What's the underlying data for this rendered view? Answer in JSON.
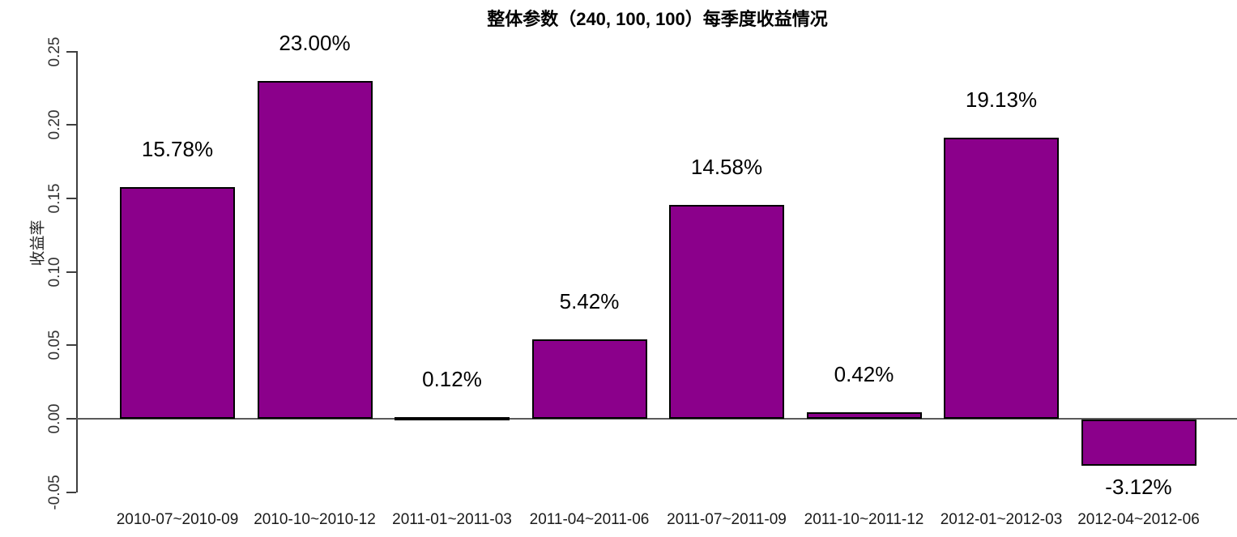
{
  "chart_data": {
    "type": "bar",
    "title": "整体参数（240, 100, 100）每季度收益情况",
    "ylabel": "收益率",
    "xlabel": "",
    "categories": [
      "2010-07~2010-09",
      "2010-10~2010-12",
      "2011-01~2011-03",
      "2011-04~2011-06",
      "2011-07~2011-09",
      "2011-10~2011-12",
      "2012-01~2012-03",
      "2012-04~2012-06"
    ],
    "values": [
      0.1578,
      0.23,
      0.0012,
      0.0542,
      0.1458,
      0.0042,
      0.1913,
      -0.0312
    ],
    "bar_labels": [
      "15.78%",
      "23.00%",
      "0.12%",
      "5.42%",
      "14.58%",
      "0.42%",
      "19.13%",
      "-3.12%"
    ],
    "ylim": [
      -0.05,
      0.25
    ],
    "ytick_values": [
      -0.05,
      0.0,
      0.05,
      0.1,
      0.15,
      0.2,
      0.25
    ],
    "ytick_labels": [
      "-0.05",
      "0.00",
      "0.05",
      "0.10",
      "0.15",
      "0.20",
      "0.25"
    ],
    "grid": false,
    "legend": null,
    "colors": {
      "bar_fill": "#8B008B",
      "bar_border": "#000000",
      "axis": "#3f3f3f",
      "zero_line": "#5a5a5a",
      "value_text": "#000000",
      "tick_text": "#333333"
    }
  }
}
